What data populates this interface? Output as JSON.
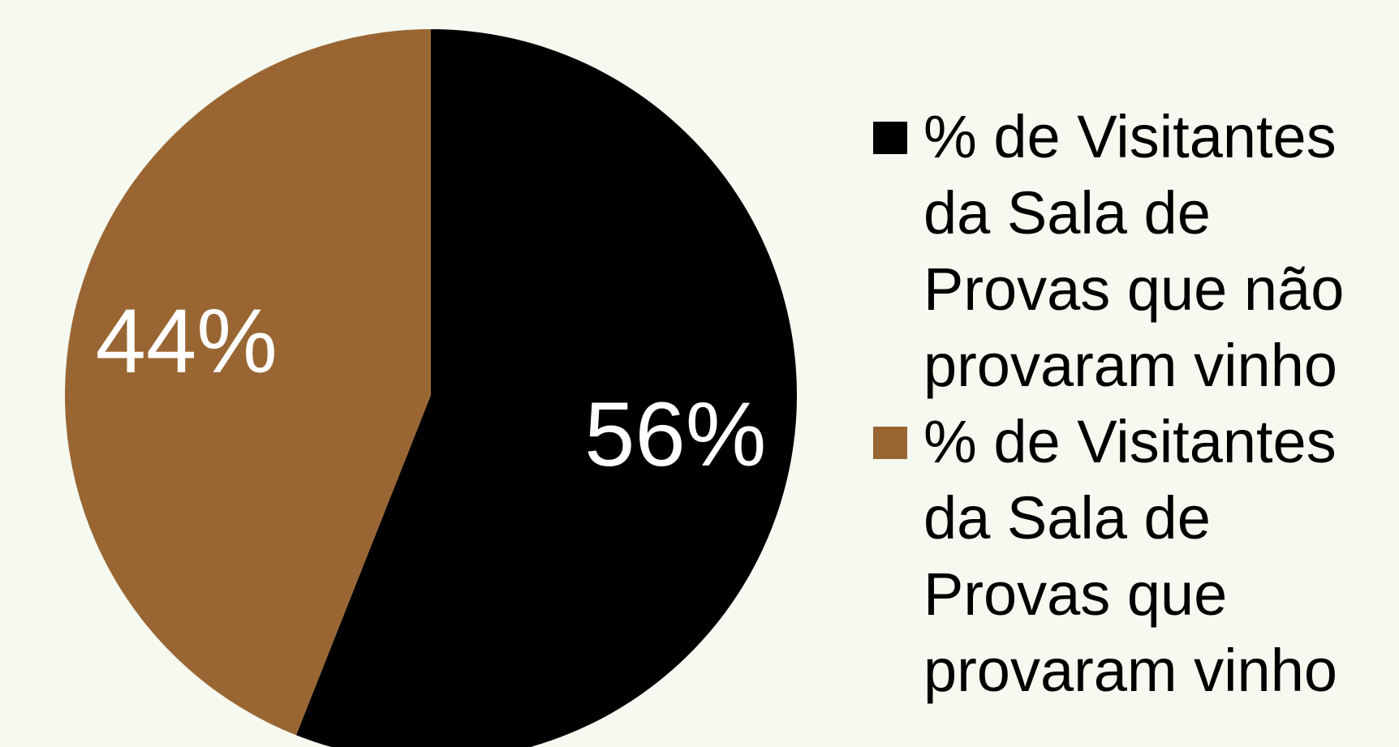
{
  "chart_data": {
    "type": "pie",
    "categories": [
      "% de Visitantes da Sala de Provas que não provaram vinho",
      "% de Visitantes da Sala de Provas que provaram vinho"
    ],
    "values": [
      56,
      44
    ],
    "value_labels": [
      "56%",
      "44%"
    ],
    "colors": [
      "#000000",
      "#996633"
    ],
    "legend": "right"
  }
}
